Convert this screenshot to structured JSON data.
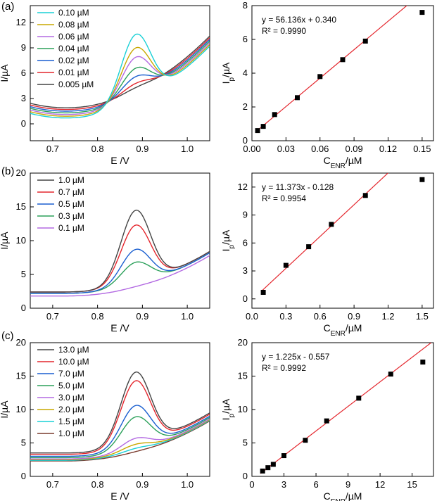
{
  "panel_labels": [
    "(a)",
    "(b)",
    "(c)"
  ],
  "chart_data": [
    {
      "panel": "(a)",
      "type": "line",
      "xlabel": "E /V",
      "ylabel": "I/µA",
      "xlim": [
        0.65,
        1.05
      ],
      "ylim": [
        -2,
        14
      ],
      "xticks": [
        0.7,
        0.8,
        0.9,
        1.0
      ],
      "yticks": [
        0,
        3,
        6,
        9,
        12
      ],
      "legend": "top-left",
      "series": [
        {
          "name": "0.10 µM",
          "color": "#19d0d6",
          "base": 1.2,
          "peak": 7.9
        },
        {
          "name": "0.08 µM",
          "color": "#c8a800",
          "base": 1.4,
          "peak": 6.1
        },
        {
          "name": "0.06 µM",
          "color": "#b36ae2",
          "base": 1.6,
          "peak": 4.8
        },
        {
          "name": "0.04 µM",
          "color": "#2ba05a",
          "base": 1.8,
          "peak": 3.3
        },
        {
          "name": "0.02 µM",
          "color": "#1a5fd0",
          "base": 2.0,
          "peak": 2.1
        },
        {
          "name": "0.01 µM",
          "color": "#e4262d",
          "base": 2.2,
          "peak": 1.1
        },
        {
          "name": "0.005 µM",
          "color": "#444444",
          "base": 2.4,
          "peak": 0.4
        }
      ]
    },
    {
      "panel": "(a)",
      "type": "scatter",
      "xlabel": "C_ENR/µM",
      "ylabel": "I_p/µA",
      "xlim": [
        0,
        0.16
      ],
      "ylim": [
        0,
        8
      ],
      "xticks": [
        0.0,
        0.03,
        0.06,
        0.09,
        0.12,
        0.15
      ],
      "yticks": [
        0,
        2,
        4,
        6,
        8
      ],
      "x": [
        0.005,
        0.01,
        0.02,
        0.04,
        0.06,
        0.08,
        0.1,
        0.15
      ],
      "y": [
        0.6,
        0.85,
        1.55,
        2.55,
        3.8,
        4.8,
        5.9,
        7.6
      ],
      "fit": {
        "slope": 56.136,
        "intercept": 0.34,
        "x_range": [
          0.005,
          0.137
        ]
      },
      "equation": "y = 56.136x + 0.340",
      "r2_label": "R² = 0.9990"
    },
    {
      "panel": "(b)",
      "type": "line",
      "xlabel": "E /V",
      "ylabel": "I/µA",
      "xlim": [
        0.65,
        1.05
      ],
      "ylim": [
        0,
        20
      ],
      "xticks": [
        0.7,
        0.8,
        0.9,
        1.0
      ],
      "yticks": [
        0,
        5,
        10,
        15,
        20
      ],
      "legend": "top-left",
      "series": [
        {
          "name": "1.0 µM",
          "color": "#444444",
          "base": 2.4,
          "peak": 10.8
        },
        {
          "name": "0.7 µM",
          "color": "#e4262d",
          "base": 2.4,
          "peak": 8.6
        },
        {
          "name": "0.5 µM",
          "color": "#1a5fd0",
          "base": 2.2,
          "peak": 5.2
        },
        {
          "name": "0.3 µM",
          "color": "#2ba05a",
          "base": 2.2,
          "peak": 3.3
        },
        {
          "name": "0.1 µM",
          "color": "#b36ae2",
          "base": 1.8,
          "peak": 0.1
        }
      ]
    },
    {
      "panel": "(b)",
      "type": "scatter",
      "xlabel": "C_ENR/µM",
      "ylabel": "I_p/µA",
      "xlim": [
        0,
        1.6
      ],
      "ylim": [
        -1,
        13.5
      ],
      "xticks": [
        0.0,
        0.3,
        0.6,
        0.9,
        1.2,
        1.5
      ],
      "yticks": [
        0,
        3,
        6,
        9,
        12
      ],
      "x": [
        0.1,
        0.3,
        0.5,
        0.7,
        1.0,
        1.5
      ],
      "y": [
        0.7,
        3.6,
        5.6,
        8.0,
        11.1,
        12.8
      ],
      "fit": {
        "slope": 11.373,
        "intercept": -0.128,
        "x_range": [
          0.08,
          1.2
        ]
      },
      "equation": "y = 11.373x - 0.128",
      "r2_label": "R² = 0.9954"
    },
    {
      "panel": "(c)",
      "type": "line",
      "xlabel": "E /V",
      "ylabel": "I/µA",
      "xlim": [
        0.65,
        1.05
      ],
      "ylim": [
        0,
        20
      ],
      "xticks": [
        0.7,
        0.8,
        0.9,
        1.0
      ],
      "yticks": [
        0,
        5,
        10,
        15,
        20
      ],
      "legend": "top-left",
      "series": [
        {
          "name": "13.0 µM",
          "color": "#444444",
          "base": 3.5,
          "peak": 10.8
        },
        {
          "name": "10.0 µM",
          "color": "#e4262d",
          "base": 3.3,
          "peak": 9.7
        },
        {
          "name": "7.0 µM",
          "color": "#1a5fd0",
          "base": 3.0,
          "peak": 6.3
        },
        {
          "name": "5.0 µM",
          "color": "#2ba05a",
          "base": 2.8,
          "peak": 4.8
        },
        {
          "name": "3.0 µM",
          "color": "#b36ae2",
          "base": 2.6,
          "peak": 1.8
        },
        {
          "name": "2.0 µM",
          "color": "#c8a800",
          "base": 2.5,
          "peak": 1.0
        },
        {
          "name": "1.5 µM",
          "color": "#19d0d6",
          "base": 2.4,
          "peak": 0.5
        },
        {
          "name": "1.0 µM",
          "color": "#7a3b2e",
          "base": 2.3,
          "peak": 0.1
        }
      ]
    },
    {
      "panel": "(c)",
      "type": "scatter",
      "xlabel": "C_ENR/µM",
      "ylabel": "I_p/µA",
      "xlim": [
        0,
        17
      ],
      "ylim": [
        0,
        20
      ],
      "xticks": [
        0,
        3,
        6,
        9,
        12,
        15
      ],
      "yticks": [
        0,
        5,
        10,
        15,
        20
      ],
      "x": [
        1.0,
        1.5,
        2.0,
        3.0,
        5.0,
        7.0,
        10.0,
        13.0,
        16.0
      ],
      "y": [
        0.8,
        1.3,
        1.8,
        3.1,
        5.4,
        8.3,
        11.7,
        15.3,
        17.1
      ],
      "fit": {
        "slope": 1.225,
        "intercept": -0.557,
        "x_range": [
          0.8,
          16.8
        ]
      },
      "equation": "y = 1.225x - 0.557",
      "r2_label": "R² = 0.9992"
    }
  ]
}
